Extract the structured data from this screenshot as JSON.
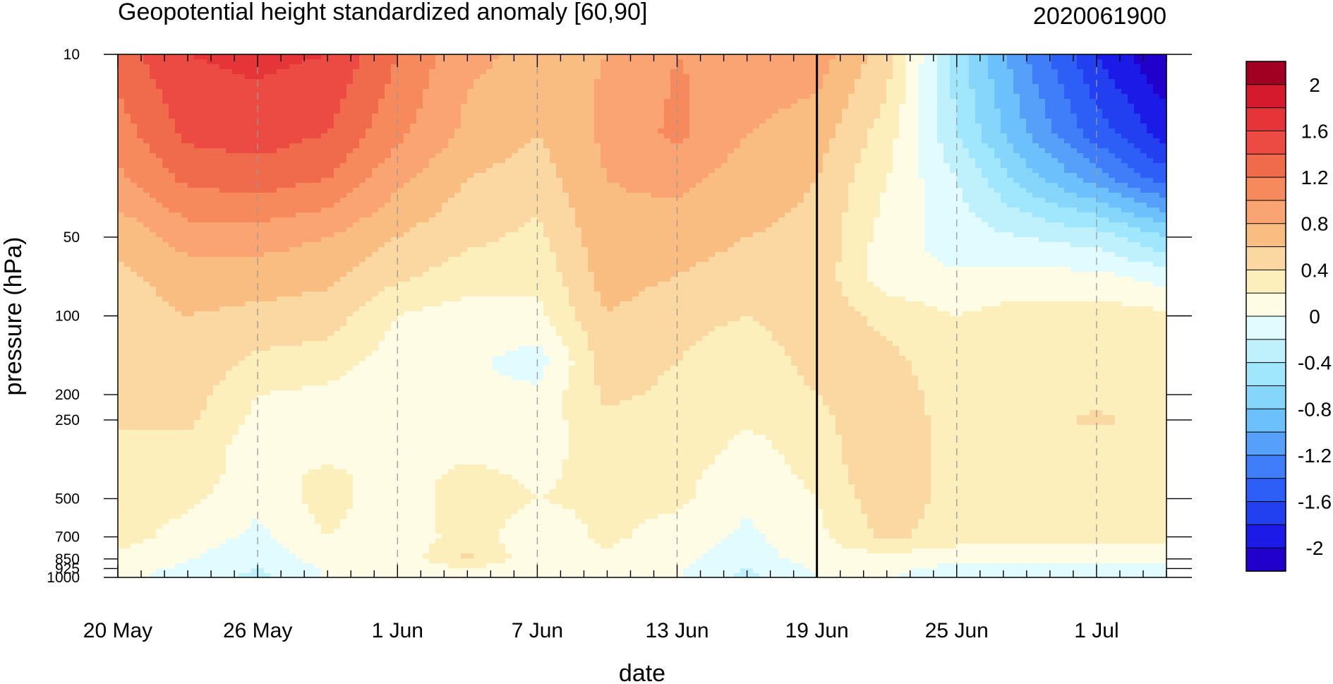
{
  "chart_data": {
    "type": "heatmap",
    "subtype": "filled-contour",
    "title": "Geopotential height standardized anomaly [60,90]",
    "date_label": "2020061900",
    "xlabel": "date",
    "ylabel": "pressure (hPa)",
    "x_axis": {
      "start": "2020-05-20",
      "end": "2020-07-04",
      "ticks": [
        "20 May",
        "26 May",
        "1 Jun",
        "7 Jun",
        "13 Jun",
        "19 Jun",
        "25 Jun",
        "1 Jul"
      ],
      "tick_dates": [
        "2020-05-20",
        "2020-05-26",
        "2020-06-01",
        "2020-06-07",
        "2020-06-13",
        "2020-06-19",
        "2020-06-25",
        "2020-07-01"
      ],
      "minor_ticks": "daily",
      "dashed_gridlines": [
        "2020-05-26",
        "2020-06-01",
        "2020-06-07",
        "2020-06-13",
        "2020-06-25",
        "2020-07-01"
      ],
      "marker_line": "2020-06-19"
    },
    "y_axis": {
      "scale": "log",
      "reversed": true,
      "range": [
        1000,
        10
      ],
      "ticks": [
        10,
        50,
        100,
        200,
        250,
        500,
        700,
        850,
        925,
        1000
      ],
      "tick_labels": [
        "10",
        "50",
        "100",
        "200",
        "250",
        "500",
        "700",
        "850",
        "925",
        "1000"
      ]
    },
    "colorbar": {
      "labels": [
        "2",
        "1.6",
        "1.2",
        "0.8",
        "0.4",
        "0",
        "-0.4",
        "-0.8",
        "-1.2",
        "-1.6",
        "-2"
      ],
      "levels": [
        -2.2,
        -2.0,
        -1.8,
        -1.6,
        -1.4,
        -1.2,
        -1.0,
        -0.8,
        -0.6,
        -0.4,
        -0.2,
        0,
        0.2,
        0.4,
        0.6,
        0.8,
        1.0,
        1.2,
        1.4,
        1.6,
        1.8,
        2.0,
        2.2
      ],
      "colors": [
        "#2200cc",
        "#1c1ae6",
        "#2240f0",
        "#2d5ef5",
        "#3f7ef8",
        "#56a0fa",
        "#6cc0fb",
        "#86d6fc",
        "#a0e6fd",
        "#bff1fd",
        "#e2fbfe",
        "#fffce6",
        "#fcefbb",
        "#fbd8a1",
        "#f9bd82",
        "#f9a472",
        "#f68a5c",
        "#f06a4c",
        "#eb4b42",
        "#e63538",
        "#d61a2e",
        "#a10023"
      ]
    },
    "levels_pressure": [
      10,
      20,
      30,
      50,
      70,
      100,
      150,
      200,
      250,
      300,
      400,
      500,
      700,
      850,
      925,
      1000
    ],
    "day_offsets": [
      0,
      3,
      6,
      9,
      12,
      15,
      18,
      21,
      24,
      27,
      30,
      33,
      36,
      39,
      42,
      45
    ],
    "values": [
      [
        1.3,
        1.6,
        1.65,
        1.6,
        1.2,
        0.85,
        0.75,
        0.8,
        1.0,
        0.95,
        0.9,
        0.5,
        -0.5,
        -1.2,
        -1.8,
        -2.2
      ],
      [
        1.1,
        1.45,
        1.5,
        1.4,
        1.05,
        0.75,
        0.6,
        0.85,
        1.05,
        0.8,
        0.7,
        0.3,
        -0.4,
        -1.0,
        -1.5,
        -1.9
      ],
      [
        0.95,
        1.25,
        1.3,
        1.2,
        0.85,
        0.6,
        0.5,
        0.8,
        0.85,
        0.7,
        0.6,
        0.2,
        -0.2,
        -0.7,
        -1.1,
        -1.5
      ],
      [
        0.65,
        0.9,
        0.9,
        0.8,
        0.6,
        0.45,
        0.35,
        0.75,
        0.7,
        0.6,
        0.55,
        0.1,
        -0.1,
        -0.2,
        -0.3,
        -0.6
      ],
      [
        0.55,
        0.7,
        0.7,
        0.65,
        0.45,
        0.3,
        0.25,
        0.7,
        0.6,
        0.5,
        0.55,
        0.05,
        0.02,
        0.05,
        0.05,
        -0.1
      ],
      [
        0.5,
        0.6,
        0.55,
        0.5,
        0.2,
        0.1,
        0.15,
        0.6,
        0.45,
        0.4,
        0.5,
        0.35,
        0.2,
        0.3,
        0.3,
        0.25
      ],
      [
        0.45,
        0.55,
        0.35,
        0.3,
        0.1,
        0.05,
        -0.1,
        0.5,
        0.4,
        0.3,
        0.45,
        0.45,
        0.3,
        0.3,
        0.3,
        0.3
      ],
      [
        0.45,
        0.5,
        0.2,
        0.15,
        0.05,
        0.03,
        0.05,
        0.45,
        0.35,
        0.3,
        0.4,
        0.5,
        0.3,
        0.3,
        0.3,
        0.3
      ],
      [
        0.4,
        0.45,
        0.15,
        0.1,
        0.05,
        0.03,
        0.1,
        0.35,
        0.3,
        0.25,
        0.35,
        0.55,
        0.3,
        0.3,
        0.45,
        0.3
      ],
      [
        0.4,
        0.35,
        0.1,
        0.05,
        0.05,
        0.1,
        0.1,
        0.3,
        0.35,
        0.15,
        0.3,
        0.6,
        0.3,
        0.3,
        0.3,
        0.3
      ],
      [
        0.4,
        0.3,
        0.1,
        0.25,
        0.1,
        0.25,
        0.15,
        0.3,
        0.25,
        0.1,
        0.25,
        0.6,
        0.3,
        0.3,
        0.3,
        0.3
      ],
      [
        0.35,
        0.25,
        0.05,
        0.3,
        0.05,
        0.35,
        0.2,
        0.25,
        0.25,
        0.05,
        0.2,
        0.55,
        0.3,
        0.3,
        0.3,
        0.3
      ],
      [
        0.3,
        0.1,
        -0.05,
        0.2,
        0.05,
        0.3,
        0.05,
        0.25,
        0.1,
        -0.05,
        0.15,
        0.45,
        0.3,
        0.25,
        0.25,
        0.25
      ],
      [
        0.15,
        0.02,
        -0.15,
        0.1,
        0.05,
        0.45,
        0.05,
        0.15,
        0.05,
        -0.1,
        0.1,
        0.1,
        0.05,
        0.1,
        0.1,
        0.1
      ],
      [
        0.1,
        -0.05,
        -0.2,
        0.02,
        0.02,
        0.2,
        0.02,
        0.05,
        0.02,
        -0.2,
        0.02,
        0.05,
        -0.05,
        -0.05,
        -0.05,
        -0.05
      ],
      [
        0.05,
        -0.1,
        -0.25,
        0.02,
        0.02,
        0.1,
        0.01,
        0.02,
        0.01,
        -0.25,
        0.0,
        0.01,
        -0.1,
        -0.1,
        -0.1,
        -0.1
      ]
    ]
  }
}
